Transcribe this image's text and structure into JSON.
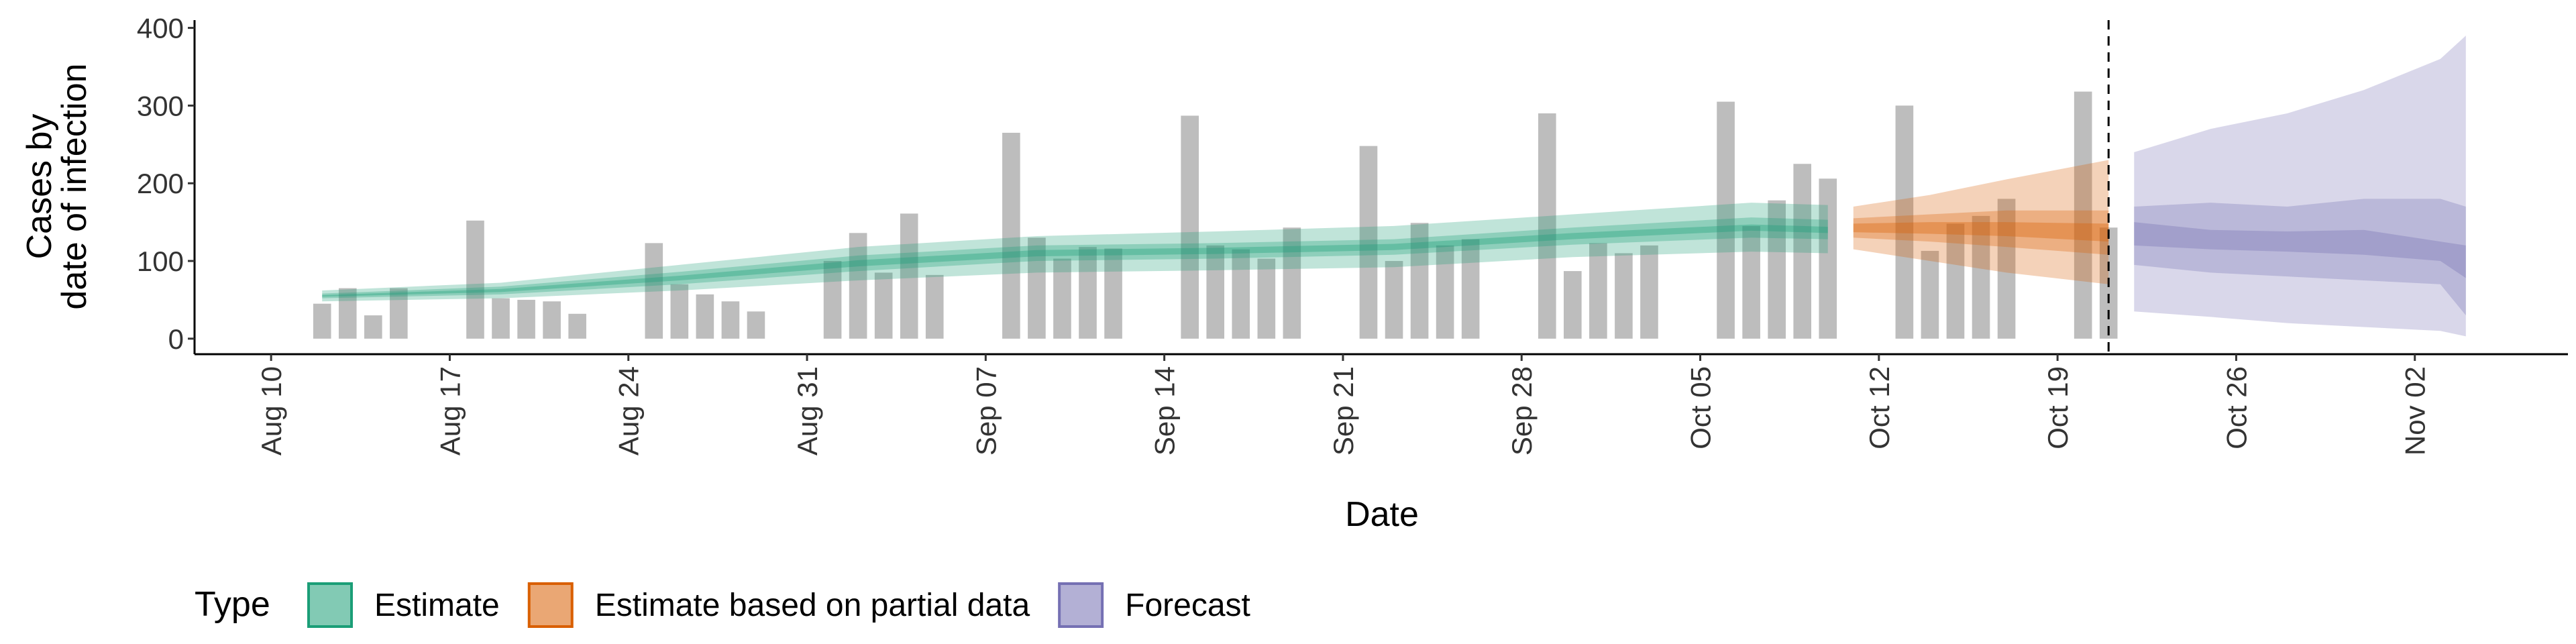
{
  "chart_data": {
    "type": "bar",
    "x_label": "Date",
    "y_label": [
      "Cases by",
      "date of infection"
    ],
    "legend_title": "Type",
    "xlim": [
      "Aug 07",
      "Nov 08"
    ],
    "xticks": [
      "Aug 10",
      "Aug 17",
      "Aug 24",
      "Aug 31",
      "Sep 07",
      "Sep 14",
      "Sep 21",
      "Sep 28",
      "Oct 05",
      "Oct 12",
      "Oct 19",
      "Oct 26",
      "Nov 02"
    ],
    "ylim": [
      -20,
      410
    ],
    "yticks": [
      0,
      100,
      200,
      300,
      400
    ],
    "vline": "Oct 21",
    "bar_color": "#bdbdbd",
    "x": [
      "Aug 12",
      "Aug 13",
      "Aug 14",
      "Aug 15",
      "Aug 18",
      "Aug 19",
      "Aug 20",
      "Aug 21",
      "Aug 22",
      "Aug 25",
      "Aug 26",
      "Aug 27",
      "Aug 28",
      "Aug 29",
      "Sep 01",
      "Sep 02",
      "Sep 03",
      "Sep 04",
      "Sep 05",
      "Sep 08",
      "Sep 09",
      "Sep 10",
      "Sep 11",
      "Sep 12",
      "Sep 15",
      "Sep 16",
      "Sep 17",
      "Sep 18",
      "Sep 19",
      "Sep 22",
      "Sep 23",
      "Sep 24",
      "Sep 25",
      "Sep 26",
      "Sep 29",
      "Sep 30",
      "Oct 01",
      "Oct 02",
      "Oct 03",
      "Oct 06",
      "Oct 07",
      "Oct 08",
      "Oct 09",
      "Oct 10",
      "Oct 13",
      "Oct 14",
      "Oct 15",
      "Oct 16",
      "Oct 17",
      "Oct 20",
      "Oct 21"
    ],
    "values": [
      45,
      65,
      30,
      65,
      152,
      52,
      50,
      48,
      32,
      123,
      70,
      57,
      48,
      35,
      100,
      136,
      85,
      161,
      82,
      265,
      130,
      103,
      118,
      116,
      287,
      120,
      115,
      103,
      143,
      248,
      100,
      149,
      120,
      128,
      290,
      87,
      123,
      110,
      120,
      305,
      145,
      178,
      225,
      206,
      300,
      113,
      148,
      158,
      180,
      318,
      143
    ],
    "series": [
      {
        "name": "Estimate",
        "color": "#1b9e77",
        "x": [
          "Aug 12",
          "Aug 19",
          "Aug 26",
          "Sep 02",
          "Sep 09",
          "Sep 16",
          "Sep 23",
          "Sep 30",
          "Oct 07",
          "Oct 10"
        ],
        "bands": [
          {
            "lower": [
              48,
              52,
              62,
              75,
              85,
              88,
              92,
              105,
              112,
              110
            ],
            "upper": [
              62,
              72,
              95,
              118,
              132,
              138,
              145,
              160,
              175,
              172
            ]
          },
          {
            "lower": [
              52,
              57,
              70,
              87,
              100,
              103,
              108,
              121,
              130,
              128
            ],
            "upper": [
              58,
              67,
              86,
              107,
              120,
              123,
              128,
              143,
              156,
              153
            ]
          },
          {
            "lower": [
              54,
              60,
              75,
              93,
              106,
              109,
              114,
              128,
              139,
              136
            ],
            "upper": [
              56,
              64,
              81,
              101,
              114,
              117,
              122,
              136,
              147,
              144
            ]
          }
        ]
      },
      {
        "name": "Estimate based on partial data",
        "color": "#d95f02",
        "x": [
          "Oct 11",
          "Oct 14",
          "Oct 17",
          "Oct 21"
        ],
        "bands": [
          {
            "lower": [
              115,
              100,
              85,
              70
            ],
            "upper": [
              170,
              185,
              205,
              230
            ]
          },
          {
            "lower": [
              130,
              125,
              118,
              108
            ],
            "upper": [
              155,
              160,
              165,
              165
            ]
          },
          {
            "lower": [
              137,
              135,
              132,
              125
            ],
            "upper": [
              148,
              150,
              150,
              148
            ]
          }
        ]
      },
      {
        "name": "Forecast",
        "color": "#7570b3",
        "x": [
          "Oct 22",
          "Oct 25",
          "Oct 28",
          "Oct 31",
          "Nov 03",
          "Nov 04"
        ],
        "bands": [
          {
            "lower": [
              35,
              28,
              20,
              15,
              10,
              3
            ],
            "upper": [
              240,
              270,
              290,
              320,
              360,
              390
            ]
          },
          {
            "lower": [
              95,
              85,
              80,
              75,
              70,
              30
            ],
            "upper": [
              170,
              175,
              170,
              180,
              180,
              170
            ]
          },
          {
            "lower": [
              120,
              115,
              112,
              108,
              100,
              78
            ],
            "upper": [
              150,
              140,
              138,
              140,
              125,
              120
            ]
          }
        ]
      }
    ]
  }
}
